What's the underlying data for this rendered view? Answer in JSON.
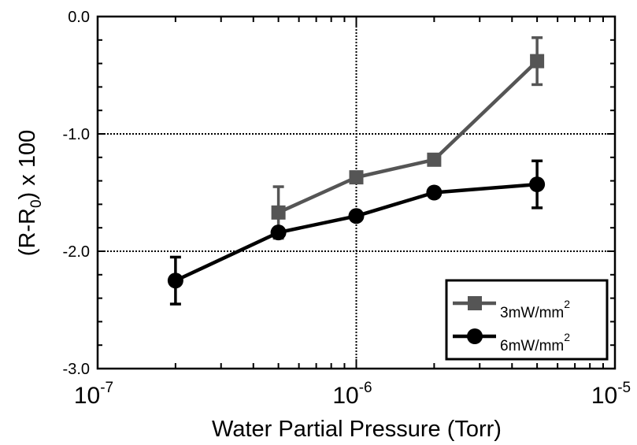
{
  "chart_data": {
    "type": "line",
    "x_scale": "log",
    "xlim": [
      1e-07,
      1e-05
    ],
    "ylim": [
      -3.0,
      0.0
    ],
    "grid": true,
    "legend_position": "bottom-right",
    "xlabel": "Water Partial Pressure (Torr)",
    "ylabel_main": "(R-R",
    "ylabel_sub": "0",
    "ylabel_tail": ") x 100",
    "x_ticks": [
      {
        "value": 1e-07,
        "base": "10",
        "exp": "-7"
      },
      {
        "value": 1e-06,
        "base": "10",
        "exp": "-6"
      },
      {
        "value": 1e-05,
        "base": "10",
        "exp": "-5"
      }
    ],
    "y_ticks": [
      {
        "value": 0.0,
        "label": "0.0"
      },
      {
        "value": -1.0,
        "label": "-1.0"
      },
      {
        "value": -2.0,
        "label": "-2.0"
      },
      {
        "value": -3.0,
        "label": "-3.0"
      }
    ],
    "series": [
      {
        "name_main": "3mW/mm",
        "name_sup": "2",
        "color": "#555555",
        "marker": "square",
        "x": [
          5e-07,
          1e-06,
          2e-06,
          5e-06
        ],
        "y": [
          -1.67,
          -1.37,
          -1.22,
          -0.38
        ],
        "err": [
          0.22,
          null,
          null,
          0.2
        ]
      },
      {
        "name_main": "6mW/mm",
        "name_sup": "2",
        "color": "#000000",
        "marker": "circle",
        "x": [
          2e-07,
          5e-07,
          1e-06,
          2e-06,
          5e-06
        ],
        "y": [
          -2.25,
          -1.84,
          -1.7,
          -1.5,
          -1.43
        ],
        "err": [
          0.2,
          null,
          null,
          null,
          0.2
        ]
      }
    ]
  }
}
